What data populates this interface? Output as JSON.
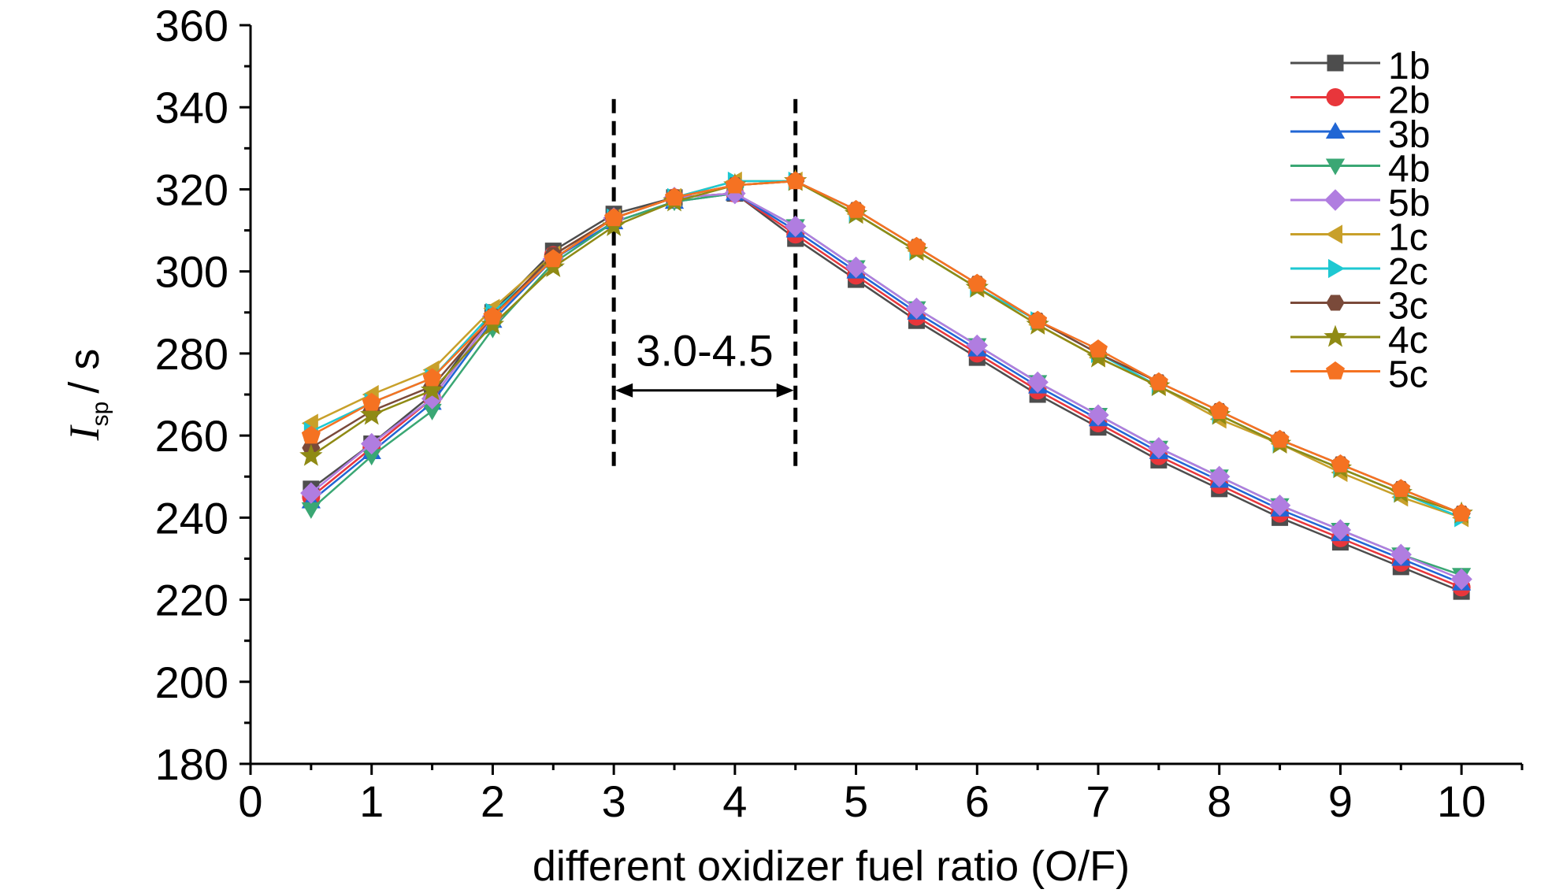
{
  "chart_data": {
    "type": "line",
    "title": "",
    "xlabel": "different oxidizer fuel ratio (O/F)",
    "ylabel": {
      "symbol": "I",
      "subscript": "sp",
      "unit": "/ s"
    },
    "xlim": [
      0,
      10.5
    ],
    "ylim": [
      180,
      360
    ],
    "xticks": [
      "0",
      "1",
      "2",
      "3",
      "4",
      "5",
      "6",
      "7",
      "8",
      "9",
      "10"
    ],
    "yticks": [
      "180",
      "200",
      "220",
      "240",
      "260",
      "280",
      "300",
      "320",
      "340",
      "360"
    ],
    "grid": false,
    "legend_position": "top-right",
    "annotation": {
      "text": "3.0-4.5",
      "x_from": 3.0,
      "x_to": 4.5
    },
    "x": [
      0.5,
      1.0,
      1.5,
      2.0,
      2.5,
      3.0,
      3.5,
      4.0,
      4.5,
      5.0,
      5.5,
      6.0,
      6.5,
      7.0,
      7.5,
      8.0,
      8.5,
      9.0,
      9.5,
      10.0
    ],
    "series": [
      {
        "name": "1b",
        "color": "#4d4d4d",
        "marker": "square",
        "values": [
          247,
          258,
          270,
          290,
          305,
          314,
          318,
          319,
          308,
          298,
          288,
          279,
          270,
          262,
          254,
          247,
          240,
          234,
          228,
          222
        ]
      },
      {
        "name": "2b",
        "color": "#e8363b",
        "marker": "circle",
        "values": [
          245,
          257,
          269,
          289,
          304,
          313,
          318,
          319,
          309,
          299,
          289,
          280,
          271,
          263,
          255,
          248,
          241,
          235,
          229,
          223
        ]
      },
      {
        "name": "3b",
        "color": "#2166d4",
        "marker": "triangle-up",
        "values": [
          244,
          256,
          268,
          288,
          303,
          312,
          317,
          319,
          310,
          300,
          290,
          281,
          272,
          264,
          256,
          249,
          242,
          236,
          230,
          224
        ]
      },
      {
        "name": "4b",
        "color": "#3aa774",
        "marker": "triangle-down",
        "values": [
          242,
          255,
          266,
          286,
          302,
          312,
          317,
          319,
          311,
          301,
          291,
          282,
          273,
          265,
          257,
          250,
          243,
          237,
          231,
          226
        ]
      },
      {
        "name": "5b",
        "color": "#b07de0",
        "marker": "diamond",
        "values": [
          246,
          258,
          269,
          289,
          303,
          313,
          318,
          319,
          311,
          301,
          291,
          282,
          273,
          265,
          257,
          250,
          243,
          237,
          231,
          225
        ]
      },
      {
        "name": "1c",
        "color": "#c8a02a",
        "marker": "triangle-left",
        "values": [
          263,
          270,
          276,
          291,
          304,
          313,
          318,
          322,
          322,
          314,
          305,
          296,
          287,
          279,
          272,
          264,
          258,
          251,
          245,
          240
        ]
      },
      {
        "name": "2c",
        "color": "#1ec8d2",
        "marker": "triangle-right",
        "values": [
          261,
          268,
          274,
          290,
          303,
          313,
          318,
          322,
          322,
          314,
          305,
          296,
          288,
          280,
          272,
          265,
          258,
          252,
          246,
          240
        ]
      },
      {
        "name": "3c",
        "color": "#7a4a3a",
        "marker": "hexagon",
        "values": [
          257,
          266,
          272,
          289,
          304,
          313,
          318,
          321,
          322,
          315,
          306,
          297,
          288,
          280,
          273,
          266,
          259,
          253,
          247,
          241
        ]
      },
      {
        "name": "4c",
        "color": "#8f8a14",
        "marker": "star",
        "values": [
          255,
          265,
          271,
          287,
          301,
          311,
          317,
          321,
          322,
          314,
          305,
          296,
          287,
          279,
          272,
          265,
          258,
          252,
          246,
          241
        ]
      },
      {
        "name": "5c",
        "color": "#f57222",
        "marker": "pentagon",
        "values": [
          260,
          268,
          274,
          289,
          303,
          313,
          318,
          321,
          322,
          315,
          306,
          297,
          288,
          281,
          273,
          266,
          259,
          253,
          247,
          241
        ]
      }
    ]
  }
}
